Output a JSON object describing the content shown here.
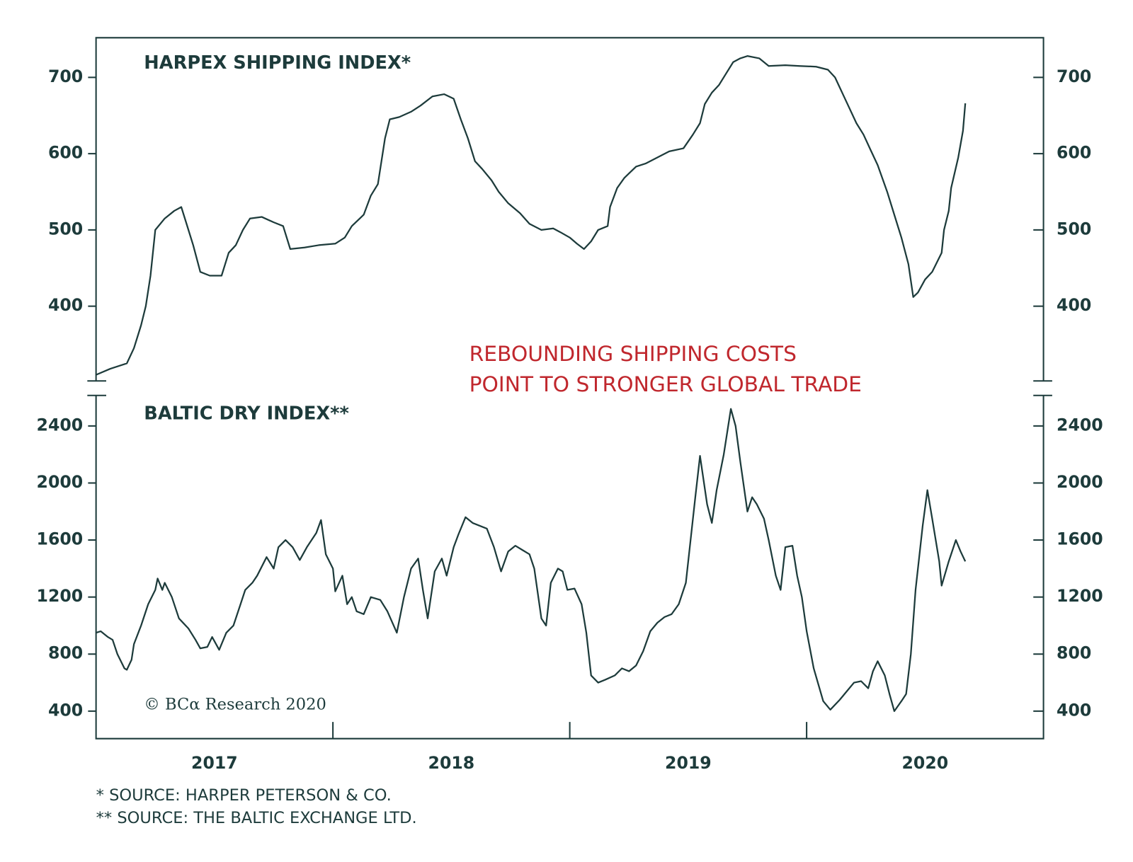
{
  "chart_data": [
    {
      "type": "line",
      "title": "HARPEX SHIPPING INDEX*",
      "color": "#1d3b3b",
      "x": [
        2017.0,
        2017.06,
        2017.13,
        2017.16,
        2017.19,
        2017.21,
        2017.23,
        2017.25,
        2017.29,
        2017.33,
        2017.36,
        2017.38,
        2017.41,
        2017.44,
        2017.48,
        2017.53,
        2017.56,
        2017.59,
        2017.62,
        2017.65,
        2017.7,
        2017.75,
        2017.79,
        2017.82,
        2017.88,
        2017.94,
        2018.01,
        2018.05,
        2018.08,
        2018.13,
        2018.16,
        2018.19,
        2018.22,
        2018.24,
        2018.28,
        2018.33,
        2018.37,
        2018.42,
        2018.47,
        2018.51,
        2018.54,
        2018.57,
        2018.6,
        2018.63,
        2018.67,
        2018.7,
        2018.74,
        2018.79,
        2018.83,
        2018.88,
        2018.93,
        2018.96,
        2019.0,
        2019.03,
        2019.06,
        2019.09,
        2019.12,
        2019.16,
        2019.17,
        2019.2,
        2019.23,
        2019.28,
        2019.32,
        2019.37,
        2019.42,
        2019.48,
        2019.52,
        2019.55,
        2019.57,
        2019.6,
        2019.63,
        2019.66,
        2019.69,
        2019.72,
        2019.75,
        2019.8,
        2019.84,
        2019.91,
        2019.97,
        2020.04,
        2020.09,
        2020.12,
        2020.15,
        2020.18,
        2020.21,
        2020.24,
        2020.27,
        2020.3,
        2020.34,
        2020.37,
        2020.4,
        2020.43,
        2020.45,
        2020.47,
        2020.5,
        2020.53,
        2020.57,
        2020.58,
        2020.6,
        2020.61,
        2020.64,
        2020.66,
        2020.67
      ],
      "values": [
        310,
        318,
        325,
        345,
        375,
        400,
        440,
        500,
        515,
        525,
        530,
        510,
        480,
        445,
        440,
        440,
        470,
        480,
        500,
        515,
        517,
        510,
        505,
        475,
        477,
        480,
        482,
        490,
        505,
        520,
        545,
        560,
        620,
        645,
        648,
        655,
        663,
        675,
        678,
        672,
        645,
        620,
        590,
        580,
        565,
        550,
        535,
        522,
        508,
        500,
        502,
        497,
        490,
        482,
        475,
        485,
        500,
        505,
        530,
        555,
        568,
        583,
        587,
        595,
        603,
        607,
        625,
        640,
        665,
        680,
        690,
        705,
        720,
        725,
        728,
        725,
        715,
        716,
        715,
        714,
        710,
        700,
        680,
        660,
        640,
        625,
        605,
        585,
        550,
        520,
        490,
        455,
        412,
        418,
        435,
        445,
        470,
        500,
        525,
        555,
        595,
        630,
        666
      ],
      "xlim": [
        2017,
        2021
      ],
      "ylim": [
        302,
        752
      ],
      "yticks": [
        400,
        500,
        600,
        700
      ]
    },
    {
      "type": "line",
      "title": "BALTIC DRY INDEX**",
      "color": "#1d3b3b",
      "x": [
        2017.0,
        2017.02,
        2017.05,
        2017.07,
        2017.09,
        2017.12,
        2017.13,
        2017.15,
        2017.16,
        2017.19,
        2017.22,
        2017.25,
        2017.26,
        2017.28,
        2017.29,
        2017.32,
        2017.35,
        2017.39,
        2017.42,
        2017.44,
        2017.47,
        2017.49,
        2017.52,
        2017.55,
        2017.58,
        2017.61,
        2017.63,
        2017.66,
        2017.68,
        2017.72,
        2017.75,
        2017.77,
        2017.8,
        2017.83,
        2017.86,
        2017.89,
        2017.93,
        2017.95,
        2017.97,
        2018.0,
        2018.01,
        2018.04,
        2018.06,
        2018.08,
        2018.1,
        2018.13,
        2018.16,
        2018.2,
        2018.23,
        2018.27,
        2018.3,
        2018.33,
        2018.36,
        2018.38,
        2018.4,
        2018.43,
        2018.46,
        2018.48,
        2018.51,
        2018.53,
        2018.56,
        2018.59,
        2018.62,
        2018.65,
        2018.68,
        2018.71,
        2018.74,
        2018.77,
        2018.8,
        2018.83,
        2018.85,
        2018.88,
        2018.9,
        2018.92,
        2018.95,
        2018.97,
        2018.99,
        2019.02,
        2019.05,
        2019.07,
        2019.09,
        2019.12,
        2019.15,
        2019.19,
        2019.22,
        2019.25,
        2019.28,
        2019.31,
        2019.34,
        2019.37,
        2019.4,
        2019.43,
        2019.46,
        2019.49,
        2019.51,
        2019.53,
        2019.55,
        2019.58,
        2019.6,
        2019.62,
        2019.65,
        2019.68,
        2019.7,
        2019.72,
        2019.75,
        2019.77,
        2019.79,
        2019.82,
        2019.84,
        2019.87,
        2019.89,
        2019.91,
        2019.94,
        2019.96,
        2019.98,
        2020.0,
        2020.03,
        2020.07,
        2020.1,
        2020.14,
        2020.17,
        2020.2,
        2020.23,
        2020.26,
        2020.28,
        2020.3,
        2020.33,
        2020.35,
        2020.37,
        2020.4,
        2020.42,
        2020.44,
        2020.46,
        2020.49,
        2020.51,
        2020.53,
        2020.56,
        2020.57,
        2020.6,
        2020.63,
        2020.65,
        2020.67
      ],
      "values": [
        950,
        960,
        920,
        900,
        800,
        700,
        690,
        760,
        870,
        1000,
        1150,
        1250,
        1330,
        1250,
        1300,
        1200,
        1050,
        980,
        900,
        840,
        850,
        920,
        830,
        950,
        1000,
        1150,
        1250,
        1300,
        1350,
        1480,
        1400,
        1550,
        1600,
        1550,
        1460,
        1550,
        1650,
        1740,
        1500,
        1400,
        1240,
        1350,
        1150,
        1200,
        1100,
        1080,
        1200,
        1180,
        1100,
        950,
        1200,
        1400,
        1470,
        1250,
        1050,
        1380,
        1470,
        1350,
        1550,
        1640,
        1760,
        1720,
        1700,
        1680,
        1550,
        1380,
        1520,
        1560,
        1530,
        1500,
        1400,
        1050,
        1000,
        1300,
        1400,
        1380,
        1250,
        1260,
        1150,
        950,
        650,
        600,
        620,
        650,
        700,
        680,
        720,
        820,
        960,
        1020,
        1060,
        1080,
        1150,
        1300,
        1600,
        1900,
        2190,
        1850,
        1720,
        1950,
        2200,
        2520,
        2400,
        2150,
        1800,
        1900,
        1850,
        1750,
        1600,
        1350,
        1250,
        1550,
        1560,
        1350,
        1200,
        960,
        700,
        470,
        410,
        480,
        540,
        600,
        610,
        560,
        680,
        750,
        650,
        520,
        400,
        470,
        520,
        800,
        1250,
        1700,
        1950,
        1750,
        1450,
        1280,
        1450,
        1600,
        1520,
        1450
      ],
      "xlim": [
        2017,
        2021
      ],
      "ylim": [
        207,
        2614
      ],
      "yticks": [
        400,
        800,
        1200,
        1600,
        2000,
        2400
      ],
      "xticks": [
        {
          "value": 2017.5,
          "label": "2017"
        },
        {
          "value": 2018.5,
          "label": "2018"
        },
        {
          "value": 2019.5,
          "label": "2019"
        },
        {
          "value": 2020.5,
          "label": "2020"
        }
      ],
      "xtick_marks": [
        2018,
        2019,
        2020
      ]
    }
  ],
  "annotation": [
    "REBOUNDING SHIPPING COSTS",
    "POINT TO STRONGER GLOBAL TRADE"
  ],
  "credit": "© BCα Research 2020",
  "footnotes": [
    "*  SOURCE: HARPER PETERSON & CO.",
    "** SOURCE: THE BALTIC EXCHANGE LTD."
  ]
}
